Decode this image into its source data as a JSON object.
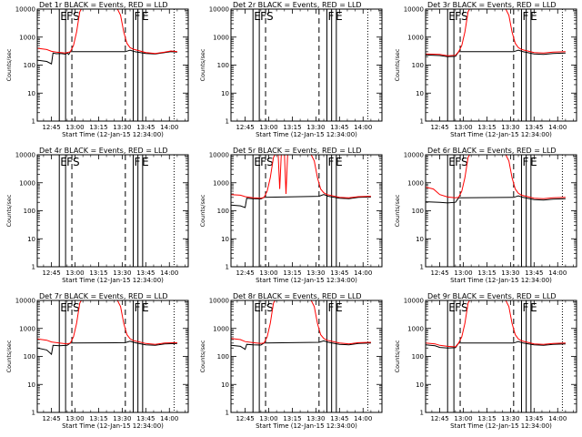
{
  "chart_data": {
    "type": "line",
    "title_template": "Det {d}r BLACK = Events, RED = LLD",
    "ylabel": "Counts/sec",
    "xlabel": "Start Time (12-Jan-15 12:34:00)",
    "x_ticks": [
      "12:45",
      "13:00",
      "13:15",
      "13:30",
      "13:45",
      "14:00"
    ],
    "x_tick_minutes": [
      0,
      15,
      30,
      45,
      60,
      75
    ],
    "xlim_minutes": [
      -9,
      87
    ],
    "ylim": [
      1,
      10000
    ],
    "y_ticks": [
      "1",
      "10",
      "100",
      "1000",
      "10000"
    ],
    "y_tick_values": [
      1,
      10,
      100,
      1000,
      10000
    ],
    "series_colors": {
      "events": "#000000",
      "lld": "#ff0000"
    },
    "vlines": {
      "solid": [
        5,
        9,
        52,
        55,
        58
      ],
      "dashed": [
        13,
        47
      ],
      "dotted": [
        78
      ]
    },
    "flag_labels": [
      {
        "text": "E",
        "minute": 5
      },
      {
        "text": "F",
        "minute": 9
      },
      {
        "text": "S",
        "minute": 13
      },
      {
        "text": "F",
        "minute": 52
      },
      {
        "text": "E",
        "minute": 57
      }
    ],
    "panels": [
      {
        "det": "1",
        "events": [
          [
            -9,
            150
          ],
          [
            -3,
            135
          ],
          [
            0,
            110
          ],
          [
            1,
            270
          ],
          [
            3,
            255
          ],
          [
            6,
            260
          ],
          [
            8,
            250
          ],
          [
            9,
            245
          ],
          [
            10,
            270
          ],
          [
            11,
            240
          ],
          [
            12,
            300
          ],
          [
            47,
            300
          ],
          [
            50,
            340
          ],
          [
            53,
            300
          ],
          [
            60,
            260
          ],
          [
            66,
            250
          ],
          [
            72,
            280
          ],
          [
            76,
            300
          ],
          [
            80,
            290
          ]
        ],
        "lld": [
          [
            -9,
            400
          ],
          [
            -3,
            360
          ],
          [
            0,
            310
          ],
          [
            3,
            290
          ],
          [
            6,
            280
          ],
          [
            9,
            270
          ],
          [
            12,
            300
          ],
          [
            14,
            500
          ],
          [
            16,
            1500
          ],
          [
            18,
            8000
          ],
          [
            19,
            15000
          ],
          [
            42,
            15000
          ],
          [
            44,
            6000
          ],
          [
            46,
            1500
          ],
          [
            48,
            600
          ],
          [
            50,
            420
          ],
          [
            52,
            370
          ],
          [
            60,
            280
          ],
          [
            66,
            260
          ],
          [
            72,
            290
          ],
          [
            76,
            320
          ],
          [
            80,
            300
          ]
        ]
      },
      {
        "det": "2",
        "events": [],
        "lld": []
      },
      {
        "det": "3",
        "events": [
          [
            -9,
            230
          ],
          [
            0,
            220
          ],
          [
            5,
            200
          ],
          [
            10,
            205
          ],
          [
            12,
            300
          ],
          [
            47,
            300
          ],
          [
            50,
            340
          ],
          [
            53,
            300
          ],
          [
            60,
            250
          ],
          [
            66,
            240
          ],
          [
            72,
            260
          ],
          [
            80,
            270
          ]
        ],
        "lld": [
          [
            -9,
            250
          ],
          [
            0,
            240
          ],
          [
            5,
            215
          ],
          [
            10,
            225
          ],
          [
            12,
            300
          ],
          [
            14,
            500
          ],
          [
            16,
            1500
          ],
          [
            18,
            8000
          ],
          [
            19,
            15000
          ],
          [
            42,
            15000
          ],
          [
            44,
            6000
          ],
          [
            46,
            1500
          ],
          [
            48,
            600
          ],
          [
            50,
            420
          ],
          [
            52,
            360
          ],
          [
            60,
            280
          ],
          [
            66,
            270
          ],
          [
            72,
            290
          ],
          [
            80,
            300
          ]
        ]
      },
      {
        "det": "4",
        "events": [],
        "lld": []
      },
      {
        "det": "5",
        "events": [
          [
            -9,
            160
          ],
          [
            -3,
            150
          ],
          [
            0,
            130
          ],
          [
            1,
            280
          ],
          [
            5,
            270
          ],
          [
            10,
            265
          ],
          [
            12,
            300
          ],
          [
            47,
            330
          ],
          [
            50,
            380
          ],
          [
            53,
            330
          ],
          [
            60,
            280
          ],
          [
            66,
            270
          ],
          [
            72,
            300
          ],
          [
            80,
            310
          ]
        ],
        "lld": [
          [
            -9,
            380
          ],
          [
            -3,
            360
          ],
          [
            0,
            320
          ],
          [
            5,
            290
          ],
          [
            10,
            280
          ],
          [
            12,
            300
          ],
          [
            14,
            500
          ],
          [
            16,
            1500
          ],
          [
            18,
            8000
          ],
          [
            19,
            15000
          ],
          [
            21,
            15000
          ],
          [
            22,
            600
          ],
          [
            23,
            15000
          ],
          [
            25,
            15000
          ],
          [
            26,
            400
          ],
          [
            27,
            15000
          ],
          [
            42,
            15000
          ],
          [
            44,
            6000
          ],
          [
            46,
            1500
          ],
          [
            48,
            600
          ],
          [
            50,
            440
          ],
          [
            52,
            380
          ],
          [
            60,
            300
          ],
          [
            66,
            290
          ],
          [
            72,
            320
          ],
          [
            80,
            330
          ]
        ]
      },
      {
        "det": "6",
        "events": [
          [
            -9,
            210
          ],
          [
            0,
            200
          ],
          [
            5,
            190
          ],
          [
            10,
            200
          ],
          [
            12,
            290
          ],
          [
            47,
            300
          ],
          [
            50,
            340
          ],
          [
            53,
            300
          ],
          [
            60,
            250
          ],
          [
            66,
            240
          ],
          [
            72,
            260
          ],
          [
            80,
            270
          ]
        ],
        "lld": [
          [
            -9,
            700
          ],
          [
            -4,
            600
          ],
          [
            0,
            380
          ],
          [
            5,
            310
          ],
          [
            10,
            290
          ],
          [
            12,
            300
          ],
          [
            14,
            500
          ],
          [
            16,
            1500
          ],
          [
            18,
            8000
          ],
          [
            19,
            15000
          ],
          [
            42,
            15000
          ],
          [
            44,
            6000
          ],
          [
            46,
            1500
          ],
          [
            48,
            600
          ],
          [
            50,
            420
          ],
          [
            52,
            360
          ],
          [
            60,
            280
          ],
          [
            66,
            270
          ],
          [
            72,
            290
          ],
          [
            80,
            300
          ]
        ]
      },
      {
        "det": "7",
        "events": [
          [
            -9,
            200
          ],
          [
            -3,
            170
          ],
          [
            0,
            120
          ],
          [
            1,
            250
          ],
          [
            5,
            240
          ],
          [
            10,
            250
          ],
          [
            12,
            300
          ],
          [
            47,
            310
          ],
          [
            50,
            350
          ],
          [
            53,
            310
          ],
          [
            60,
            260
          ],
          [
            66,
            250
          ],
          [
            72,
            280
          ],
          [
            80,
            290
          ]
        ],
        "lld": [
          [
            -9,
            420
          ],
          [
            -3,
            380
          ],
          [
            0,
            330
          ],
          [
            5,
            300
          ],
          [
            10,
            280
          ],
          [
            12,
            300
          ],
          [
            14,
            500
          ],
          [
            16,
            1500
          ],
          [
            18,
            8000
          ],
          [
            19,
            15000
          ],
          [
            42,
            15000
          ],
          [
            44,
            6000
          ],
          [
            46,
            1500
          ],
          [
            48,
            600
          ],
          [
            50,
            430
          ],
          [
            52,
            370
          ],
          [
            60,
            290
          ],
          [
            66,
            270
          ],
          [
            72,
            300
          ],
          [
            80,
            310
          ]
        ]
      },
      {
        "det": "8",
        "events": [
          [
            -9,
            250
          ],
          [
            -3,
            230
          ],
          [
            0,
            180
          ],
          [
            1,
            270
          ],
          [
            5,
            260
          ],
          [
            10,
            255
          ],
          [
            12,
            300
          ],
          [
            47,
            320
          ],
          [
            50,
            360
          ],
          [
            53,
            320
          ],
          [
            60,
            270
          ],
          [
            66,
            260
          ],
          [
            72,
            290
          ],
          [
            80,
            300
          ]
        ],
        "lld": [
          [
            -9,
            440
          ],
          [
            -3,
            400
          ],
          [
            0,
            340
          ],
          [
            5,
            310
          ],
          [
            10,
            290
          ],
          [
            12,
            300
          ],
          [
            14,
            500
          ],
          [
            16,
            1500
          ],
          [
            18,
            8000
          ],
          [
            19,
            15000
          ],
          [
            42,
            15000
          ],
          [
            44,
            6000
          ],
          [
            46,
            1500
          ],
          [
            48,
            600
          ],
          [
            50,
            440
          ],
          [
            52,
            380
          ],
          [
            60,
            300
          ],
          [
            66,
            280
          ],
          [
            72,
            310
          ],
          [
            80,
            320
          ]
        ]
      },
      {
        "det": "9",
        "events": [
          [
            -9,
            260
          ],
          [
            -3,
            240
          ],
          [
            0,
            210
          ],
          [
            5,
            200
          ],
          [
            10,
            205
          ],
          [
            12,
            300
          ],
          [
            47,
            300
          ],
          [
            50,
            340
          ],
          [
            53,
            300
          ],
          [
            60,
            260
          ],
          [
            66,
            250
          ],
          [
            72,
            270
          ],
          [
            80,
            280
          ]
        ],
        "lld": [
          [
            -9,
            300
          ],
          [
            -3,
            280
          ],
          [
            0,
            250
          ],
          [
            5,
            230
          ],
          [
            10,
            220
          ],
          [
            12,
            300
          ],
          [
            14,
            500
          ],
          [
            16,
            1500
          ],
          [
            18,
            8000
          ],
          [
            19,
            15000
          ],
          [
            42,
            15000
          ],
          [
            44,
            6000
          ],
          [
            46,
            1500
          ],
          [
            48,
            600
          ],
          [
            50,
            420
          ],
          [
            52,
            360
          ],
          [
            60,
            280
          ],
          [
            66,
            270
          ],
          [
            72,
            290
          ],
          [
            80,
            300
          ]
        ]
      }
    ]
  }
}
